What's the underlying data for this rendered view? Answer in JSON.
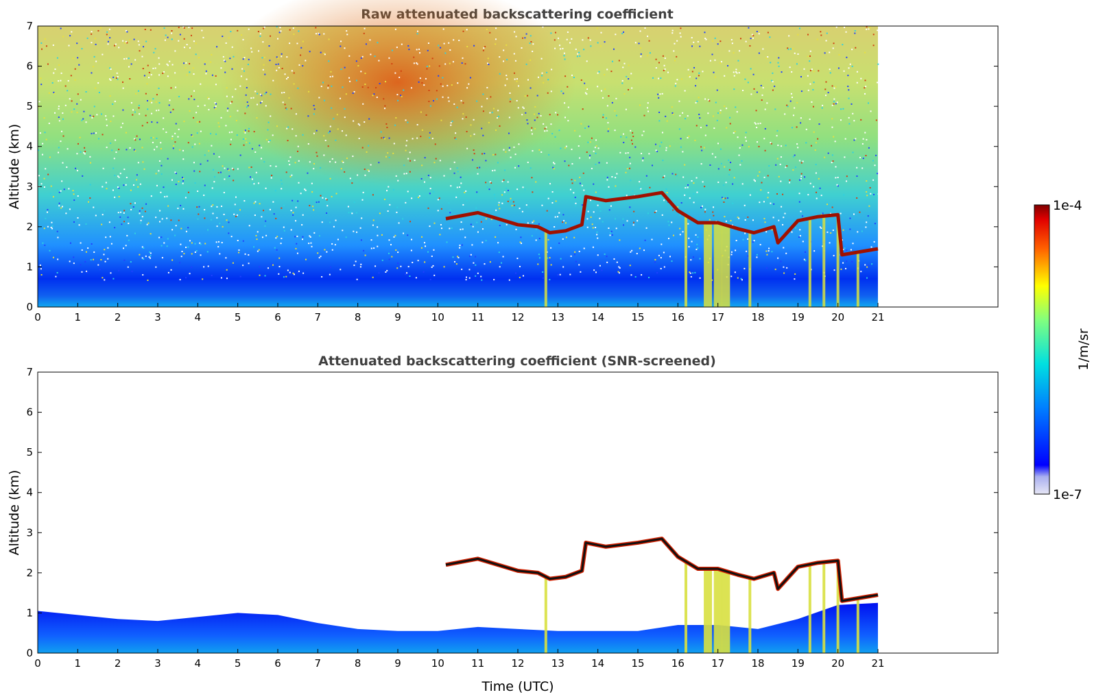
{
  "chart_data": [
    {
      "type": "heatmap",
      "title": "Raw attenuated backscattering coefficient",
      "xlabel": "",
      "ylabel": "Altitude (km)",
      "xlim": [
        0,
        24
      ],
      "ylim": [
        0,
        7
      ],
      "x_ticks": [
        "0",
        "1",
        "2",
        "3",
        "4",
        "5",
        "6",
        "7",
        "8",
        "9",
        "10",
        "11",
        "12",
        "13",
        "14",
        "15",
        "16",
        "17",
        "18",
        "19",
        "20",
        "21"
      ],
      "y_ticks": [
        "0",
        "1",
        "2",
        "3",
        "4",
        "5",
        "6",
        "7"
      ],
      "data_end_hour": 21,
      "cloud_base_km": [
        {
          "t": 10.2,
          "z": 2.2
        },
        {
          "t": 11.0,
          "z": 2.35
        },
        {
          "t": 11.5,
          "z": 2.2
        },
        {
          "t": 12.0,
          "z": 2.05
        },
        {
          "t": 12.5,
          "z": 2.0
        },
        {
          "t": 12.8,
          "z": 1.85
        },
        {
          "t": 13.2,
          "z": 1.9
        },
        {
          "t": 13.6,
          "z": 2.05
        },
        {
          "t": 13.7,
          "z": 2.75
        },
        {
          "t": 14.2,
          "z": 2.65
        },
        {
          "t": 15.0,
          "z": 2.75
        },
        {
          "t": 15.6,
          "z": 2.85
        },
        {
          "t": 16.0,
          "z": 2.4
        },
        {
          "t": 16.5,
          "z": 2.1
        },
        {
          "t": 17.0,
          "z": 2.1
        },
        {
          "t": 17.5,
          "z": 1.95
        },
        {
          "t": 17.9,
          "z": 1.85
        },
        {
          "t": 18.4,
          "z": 2.0
        },
        {
          "t": 18.5,
          "z": 1.6
        },
        {
          "t": 19.0,
          "z": 2.15
        },
        {
          "t": 19.5,
          "z": 2.25
        },
        {
          "t": 20.0,
          "z": 2.3
        },
        {
          "t": 20.1,
          "z": 1.3
        },
        {
          "t": 21.0,
          "z": 1.45
        }
      ],
      "precipitation_streaks_hours": [
        12.7,
        16.2,
        16.75,
        17.0,
        17.2,
        17.8,
        19.3,
        19.65,
        20.0,
        20.5
      ]
    },
    {
      "type": "heatmap",
      "title": "Attenuated backscattering coefficient (SNR-screened)",
      "xlabel": "Time (UTC)",
      "ylabel": "Altitude (km)",
      "xlim": [
        0,
        24
      ],
      "ylim": [
        0,
        7
      ],
      "x_ticks": [
        "0",
        "1",
        "2",
        "3",
        "4",
        "5",
        "6",
        "7",
        "8",
        "9",
        "10",
        "11",
        "12",
        "13",
        "14",
        "15",
        "16",
        "17",
        "18",
        "19",
        "20",
        "21"
      ],
      "y_ticks": [
        "0",
        "1",
        "2",
        "3",
        "4",
        "5",
        "6",
        "7"
      ],
      "data_end_hour": 21,
      "boundary_layer_top_km": [
        {
          "t": 0,
          "z": 1.05
        },
        {
          "t": 1,
          "z": 0.95
        },
        {
          "t": 2,
          "z": 0.85
        },
        {
          "t": 3,
          "z": 0.8
        },
        {
          "t": 4,
          "z": 0.9
        },
        {
          "t": 5,
          "z": 1.0
        },
        {
          "t": 6,
          "z": 0.95
        },
        {
          "t": 7,
          "z": 0.75
        },
        {
          "t": 8,
          "z": 0.6
        },
        {
          "t": 9,
          "z": 0.55
        },
        {
          "t": 10,
          "z": 0.55
        },
        {
          "t": 11,
          "z": 0.65
        },
        {
          "t": 12,
          "z": 0.6
        },
        {
          "t": 13,
          "z": 0.55
        },
        {
          "t": 14,
          "z": 0.55
        },
        {
          "t": 15,
          "z": 0.55
        },
        {
          "t": 16,
          "z": 0.7
        },
        {
          "t": 17,
          "z": 0.7
        },
        {
          "t": 18,
          "z": 0.6
        },
        {
          "t": 19,
          "z": 0.85
        },
        {
          "t": 20,
          "z": 1.2
        },
        {
          "t": 21,
          "z": 1.25
        }
      ]
    }
  ],
  "colorbar": {
    "label": "1/m/sr",
    "max_label": "1e-4",
    "min_label": "1e-7",
    "colormap": "jet"
  }
}
